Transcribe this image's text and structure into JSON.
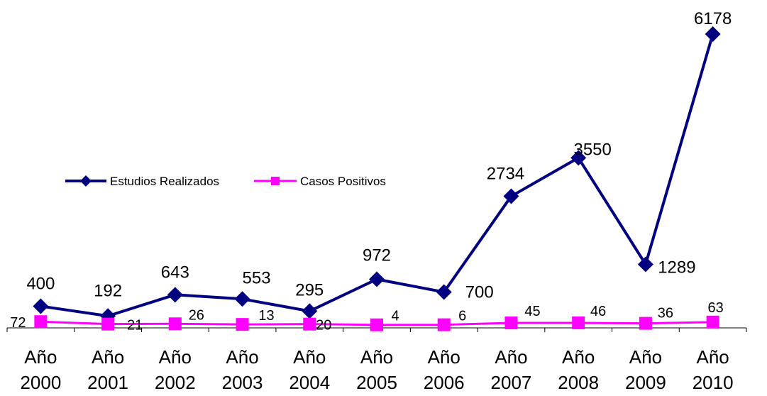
{
  "chart_data": {
    "type": "line",
    "categories": [
      [
        "Año",
        "2000"
      ],
      [
        "Año",
        "2001"
      ],
      [
        "Año",
        "2002"
      ],
      [
        "Año",
        "2003"
      ],
      [
        "Año",
        "2004"
      ],
      [
        "Año",
        "2005"
      ],
      [
        "Año",
        "2006"
      ],
      [
        "Año",
        "2007"
      ],
      [
        "Año",
        "2008"
      ],
      [
        "Año",
        "2009"
      ],
      [
        "Año",
        "2010"
      ]
    ],
    "series": [
      {
        "name": "Estudios Realizados",
        "color": "#000080",
        "marker": "diamond",
        "values": [
          400,
          192,
          643,
          553,
          295,
          972,
          700,
          2734,
          3550,
          1289,
          6178
        ],
        "labels": [
          "400",
          "192",
          "643",
          "553",
          "295",
          "972",
          "700",
          "2734",
          "3550",
          "1289",
          "6178"
        ]
      },
      {
        "name": "Casos Positivos",
        "color": "#FF00FF",
        "marker": "square",
        "values": [
          72,
          21,
          26,
          13,
          20,
          4,
          6,
          45,
          46,
          36,
          63
        ],
        "labels": [
          "72",
          "21",
          "26",
          "13",
          "20",
          "4",
          "6",
          "45",
          "46",
          "36",
          "63"
        ]
      }
    ],
    "ylim": [
      0,
      6500
    ],
    "grid": false,
    "legend": "left-middle",
    "title": "",
    "xlabel": "",
    "ylabel": ""
  }
}
